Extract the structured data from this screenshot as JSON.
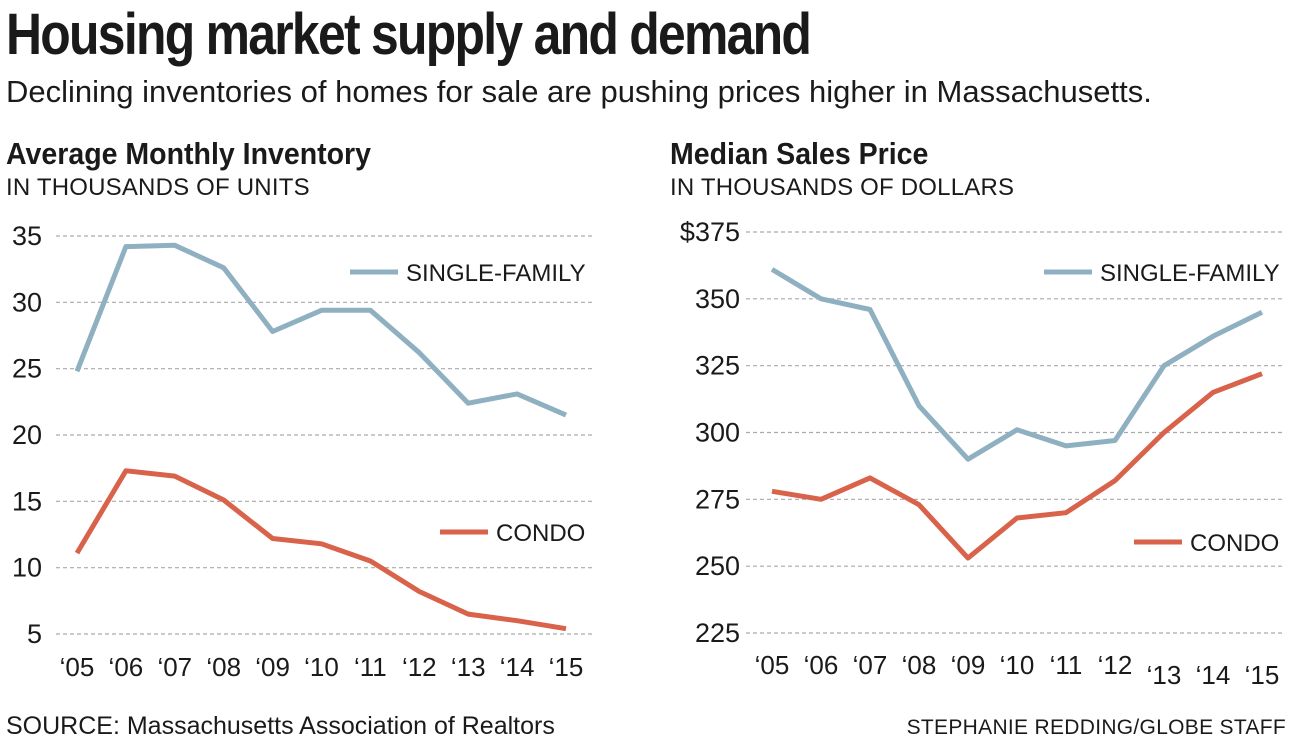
{
  "header": {
    "title": "Housing market supply and demand",
    "subtitle": "Declining inventories of homes for sale are pushing prices higher in Massachusetts."
  },
  "footer": {
    "source": "SOURCE: Massachusetts Association of Realtors",
    "credit": "STEPHANIE REDDING/GLOBE STAFF"
  },
  "colors": {
    "single_family": "#8fb0c1",
    "condo": "#d9624b",
    "grid": "#aaaaaa"
  },
  "chart_data": [
    {
      "type": "line",
      "title": "Average Monthly Inventory",
      "subtitle": "IN THOUSANDS OF UNITS",
      "categories": [
        "‘05",
        "‘06",
        "‘07",
        "‘08",
        "‘09",
        "‘10",
        "‘11",
        "‘12",
        "‘13",
        "‘14",
        "‘15"
      ],
      "yticks": [
        "35",
        "30",
        "25",
        "20",
        "15",
        "10",
        "5"
      ],
      "ylim": [
        5,
        35
      ],
      "grid": true,
      "series": [
        {
          "name": "SINGLE-FAMILY",
          "values": [
            24.8,
            34.2,
            34.3,
            32.6,
            27.8,
            29.4,
            29.4,
            26.2,
            22.4,
            23.1,
            21.5
          ]
        },
        {
          "name": "CONDO",
          "values": [
            11.1,
            17.3,
            16.9,
            15.1,
            12.2,
            11.8,
            10.5,
            8.2,
            6.5,
            6.0,
            5.4
          ]
        }
      ]
    },
    {
      "type": "line",
      "title": "Median Sales Price",
      "subtitle": "IN THOUSANDS OF DOLLARS",
      "categories": [
        "‘05",
        "‘06",
        "‘07",
        "‘08",
        "‘09",
        "‘10",
        "‘11",
        "‘12",
        "‘13",
        "‘14",
        "‘15"
      ],
      "yticks": [
        "$375",
        "350",
        "325",
        "300",
        "275",
        "250",
        "225"
      ],
      "ylim": [
        225,
        375
      ],
      "grid": true,
      "series": [
        {
          "name": "SINGLE-FAMILY",
          "values": [
            361,
            350,
            346,
            310,
            290,
            301,
            295,
            297,
            325,
            336,
            345
          ]
        },
        {
          "name": "CONDO",
          "values": [
            278,
            275,
            283,
            273,
            253,
            268,
            270,
            282,
            300,
            315,
            322
          ]
        }
      ]
    }
  ]
}
